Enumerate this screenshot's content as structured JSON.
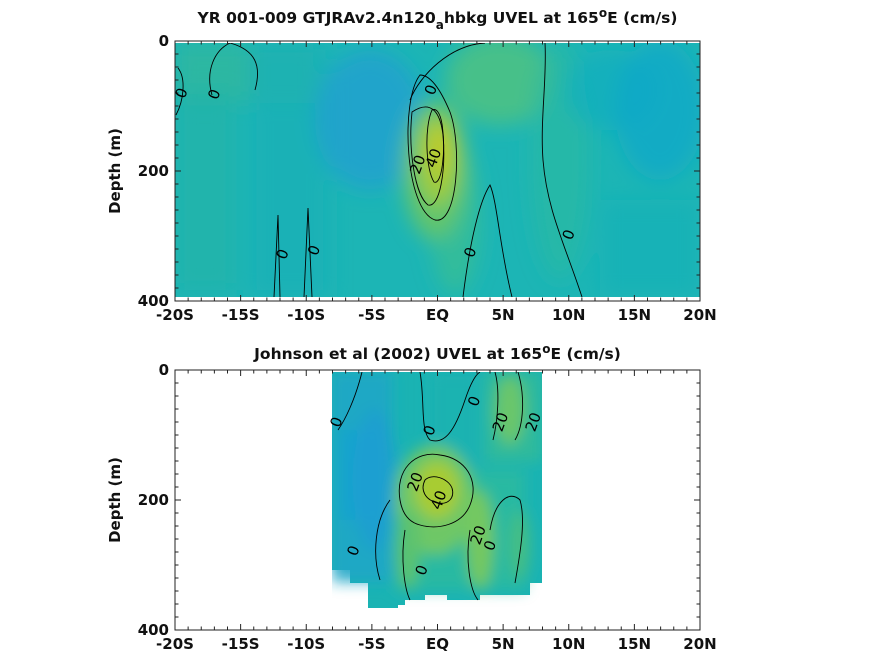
{
  "chart_data": [
    {
      "type": "heatmap",
      "title_main": "YR 001-009 GTJRAv2.4n120",
      "title_sub": "a",
      "title_rest": "hbkg UVEL at 165",
      "title_sup": "o",
      "title_end": "E (cm/s)",
      "ylabel": "Depth (m)",
      "xlim": [
        -20,
        20
      ],
      "ylim": [
        0,
        400
      ],
      "y_reversed": true,
      "x_ticks": [
        -20,
        -15,
        -10,
        -5,
        0,
        5,
        10,
        15,
        20
      ],
      "x_tick_labels": [
        "-20S",
        "-15S",
        "-10S",
        "-5S",
        "EQ",
        "5N",
        "10N",
        "15N",
        "20N"
      ],
      "y_ticks": [
        0,
        200,
        400
      ],
      "y_tick_labels": [
        "0",
        "200",
        "400"
      ],
      "contour_labels": [
        {
          "text": "0",
          "x": -19.5,
          "y": 80
        },
        {
          "text": "0",
          "x": -17,
          "y": 82
        },
        {
          "text": "0",
          "x": -0.5,
          "y": 75
        },
        {
          "text": "20",
          "x": -1.5,
          "y": 190
        },
        {
          "text": "40",
          "x": -0.3,
          "y": 180
        },
        {
          "text": "0",
          "x": -11.8,
          "y": 328
        },
        {
          "text": "0",
          "x": -9.4,
          "y": 322
        },
        {
          "text": "0",
          "x": 2.5,
          "y": 325
        },
        {
          "text": "0",
          "x": 10,
          "y": 298
        }
      ]
    },
    {
      "type": "heatmap",
      "title_main": "Johnson et al (2002) UVEL at 165",
      "title_sup": "o",
      "title_end": "E (cm/s)",
      "ylabel": "Depth (m)",
      "xlim": [
        -20,
        20
      ],
      "ylim": [
        0,
        400
      ],
      "y_reversed": true,
      "x_ticks": [
        -20,
        -15,
        -10,
        -5,
        0,
        5,
        10,
        15,
        20
      ],
      "x_tick_labels": [
        "-20S",
        "-15S",
        "-10S",
        "-5S",
        "EQ",
        "5N",
        "10N",
        "15N",
        "20N"
      ],
      "y_ticks": [
        0,
        200,
        400
      ],
      "y_tick_labels": [
        "0",
        "200",
        "400"
      ],
      "data_extent_x": [
        -8,
        8
      ],
      "contour_labels": [
        {
          "text": "0",
          "x": -7.7,
          "y": 80
        },
        {
          "text": "0",
          "x": -0.6,
          "y": 93
        },
        {
          "text": "0",
          "x": 2.8,
          "y": 48
        },
        {
          "text": "20",
          "x": 4.8,
          "y": 80
        },
        {
          "text": "20",
          "x": 7.3,
          "y": 80
        },
        {
          "text": "20",
          "x": -1.7,
          "y": 172
        },
        {
          "text": "40",
          "x": 0.1,
          "y": 200
        },
        {
          "text": "20",
          "x": 3.1,
          "y": 254
        },
        {
          "text": "0",
          "x": 4,
          "y": 270
        },
        {
          "text": "0",
          "x": -6.4,
          "y": 278
        },
        {
          "text": "0",
          "x": -1.2,
          "y": 308
        }
      ]
    }
  ]
}
